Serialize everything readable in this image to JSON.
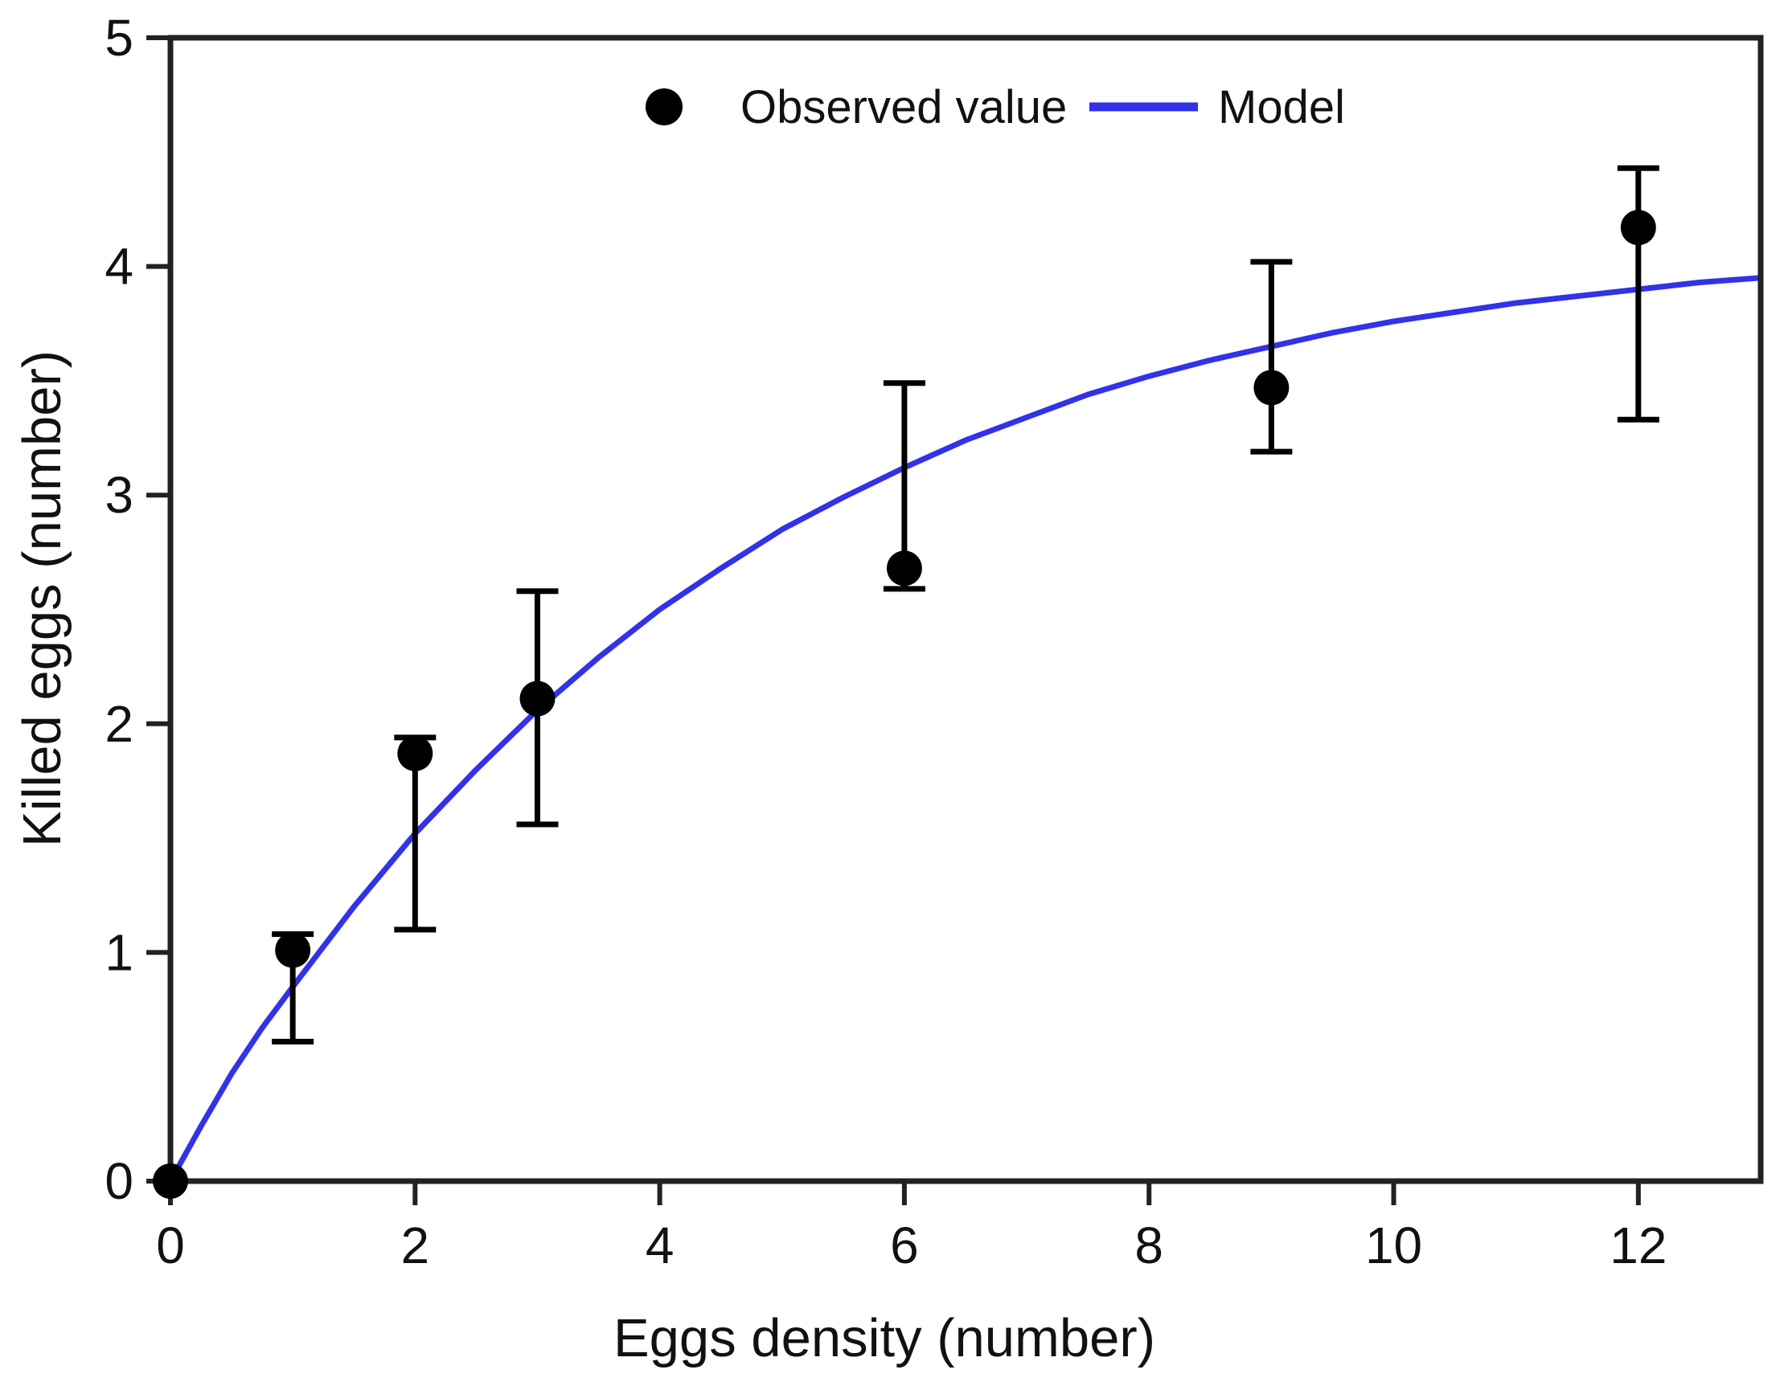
{
  "figure": {
    "description": "Scatter plot of observed killed eggs with error bars and fitted model curve"
  },
  "chart_data": {
    "type": "scatter",
    "title": "",
    "xlabel": "Eggs density (number)",
    "ylabel": "Killed eggs (number)",
    "xlim": [
      0,
      13
    ],
    "ylim": [
      0,
      5
    ],
    "x_ticks": [
      0,
      2,
      4,
      6,
      8,
      10,
      12
    ],
    "y_ticks": [
      0,
      1,
      2,
      3,
      4,
      5
    ],
    "grid": false,
    "legend_position": "top-center-inside",
    "legend": [
      {
        "label": "Observed value",
        "marker": "filled-circle",
        "color": "#000000"
      },
      {
        "label": "Model",
        "marker": "line",
        "color": "#3232e8"
      }
    ],
    "series": [
      {
        "name": "Observed value",
        "type": "scatter",
        "color": "#000000",
        "points": [
          {
            "x": 0,
            "y": 0.0
          },
          {
            "x": 1,
            "y": 1.01,
            "err_hi": 1.08,
            "err_lo": 0.61
          },
          {
            "x": 2,
            "y": 1.87,
            "err_hi": 1.94,
            "err_lo": 1.1
          },
          {
            "x": 3,
            "y": 2.11,
            "err_hi": 2.58,
            "err_lo": 1.56
          },
          {
            "x": 6,
            "y": 2.68,
            "err_hi": 3.49,
            "err_lo": 2.59
          },
          {
            "x": 9,
            "y": 3.47,
            "err_hi": 4.02,
            "err_lo": 3.19
          },
          {
            "x": 12,
            "y": 4.17,
            "err_hi": 4.43,
            "err_lo": 3.33
          }
        ]
      },
      {
        "name": "Model",
        "type": "line",
        "color": "#3232e8",
        "x": [
          0,
          0.25,
          0.5,
          0.75,
          1,
          1.5,
          2,
          2.5,
          3,
          3.5,
          4,
          4.5,
          5,
          5.5,
          6,
          6.5,
          7,
          7.5,
          8,
          8.5,
          9,
          9.5,
          10,
          10.5,
          11,
          11.5,
          12,
          12.5,
          13
        ],
        "y": [
          0,
          0.24,
          0.47,
          0.67,
          0.85,
          1.2,
          1.52,
          1.8,
          2.06,
          2.29,
          2.5,
          2.68,
          2.85,
          2.99,
          3.12,
          3.24,
          3.34,
          3.44,
          3.52,
          3.59,
          3.65,
          3.71,
          3.76,
          3.8,
          3.84,
          3.87,
          3.9,
          3.93,
          3.95
        ]
      }
    ],
    "colors": {
      "axis": "#222222",
      "text": "#111111",
      "model_line": "#3232e8",
      "observed": "#000000",
      "background": "#ffffff"
    }
  }
}
